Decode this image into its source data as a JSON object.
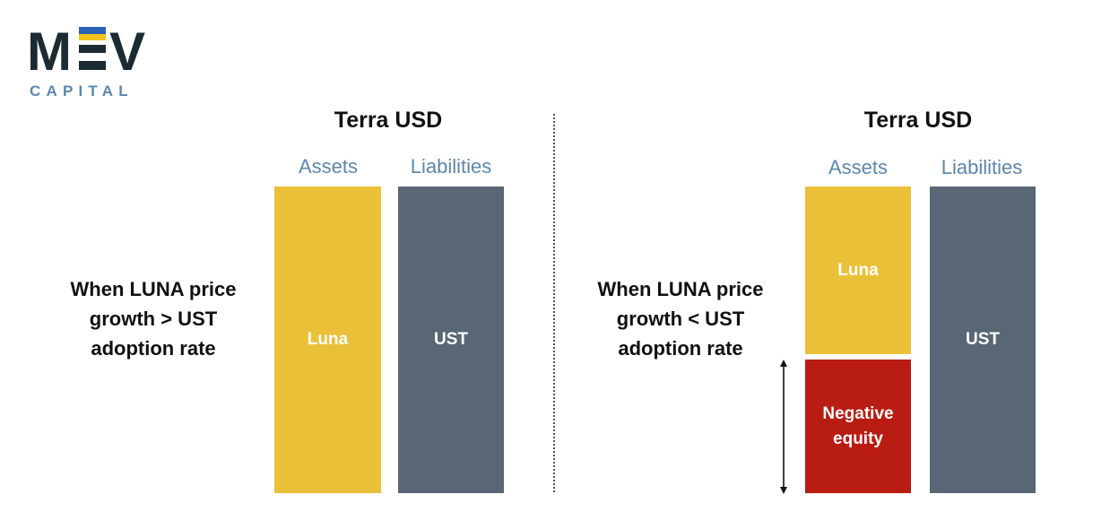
{
  "logo": {
    "mark_left": "M",
    "mark_right": "V",
    "subtitle": "CAPITAL",
    "flag_colors": {
      "top": "#2b63b8",
      "bottom": "#f2c318"
    },
    "text_color": "#1b2a33",
    "subtitle_color": "#5e86ad"
  },
  "left_panel": {
    "title": "Terra USD",
    "assets_label": "Assets",
    "liabilities_label": "Liabilities",
    "condition": [
      "When LUNA price",
      "growth > UST",
      "adoption rate"
    ],
    "assets_block": "Luna",
    "liabilities_block": "UST"
  },
  "right_panel": {
    "title": "Terra USD",
    "assets_label": "Assets",
    "liabilities_label": "Liabilities",
    "condition": [
      "When LUNA price",
      "growth < UST",
      "adoption rate"
    ],
    "assets_block": "Luna",
    "negative_block": [
      "Negative",
      "equity"
    ],
    "liabilities_block": "UST"
  },
  "colors": {
    "luna": "#ebc039",
    "ust": "#596676",
    "negative_equity": "#b81c12",
    "label_blue": "#5e86ad"
  }
}
